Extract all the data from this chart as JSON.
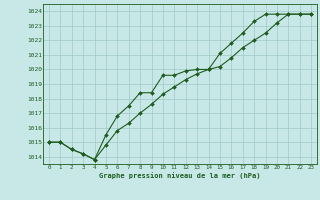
{
  "title": "Graphe pression niveau de la mer (hPa)",
  "bg_color": "#c8e8e8",
  "grid_color": "#a0c8c8",
  "line_color": "#1e5c1e",
  "xlim": [
    -0.5,
    23.5
  ],
  "ylim": [
    1013.5,
    1024.5
  ],
  "yticks": [
    1014,
    1015,
    1016,
    1017,
    1018,
    1019,
    1020,
    1021,
    1022,
    1023,
    1024
  ],
  "xticks": [
    0,
    1,
    2,
    3,
    4,
    5,
    6,
    7,
    8,
    9,
    10,
    11,
    12,
    13,
    14,
    15,
    16,
    17,
    18,
    19,
    20,
    21,
    22,
    23
  ],
  "s1_x": [
    0,
    1,
    2,
    3,
    4,
    5,
    6,
    7,
    8,
    9,
    10,
    11,
    12,
    13,
    14,
    15,
    16,
    17,
    18,
    19,
    20,
    21,
    22,
    23
  ],
  "s1_y": [
    1015.0,
    1015.0,
    1014.5,
    1014.2,
    1013.8,
    1015.5,
    1016.8,
    1017.5,
    1018.4,
    1018.4,
    1019.6,
    1019.6,
    1019.9,
    1020.0,
    1020.0,
    1021.1,
    1021.8,
    1022.5,
    1023.3,
    1023.8,
    1023.8,
    1023.8,
    1023.8,
    1023.8
  ],
  "s2_x": [
    0,
    1,
    2,
    3,
    4,
    5,
    6,
    7,
    8,
    9,
    10,
    11,
    12,
    13,
    14,
    15,
    16,
    17,
    18,
    19,
    20,
    21,
    22,
    23
  ],
  "s2_y": [
    1015.0,
    1015.0,
    1014.5,
    1014.2,
    1013.8,
    1014.8,
    1015.8,
    1016.3,
    1017.0,
    1017.6,
    1018.3,
    1018.8,
    1019.3,
    1019.7,
    1020.0,
    1020.2,
    1020.8,
    1021.5,
    1022.0,
    1022.5,
    1023.2,
    1023.8,
    1023.8,
    1023.8
  ]
}
